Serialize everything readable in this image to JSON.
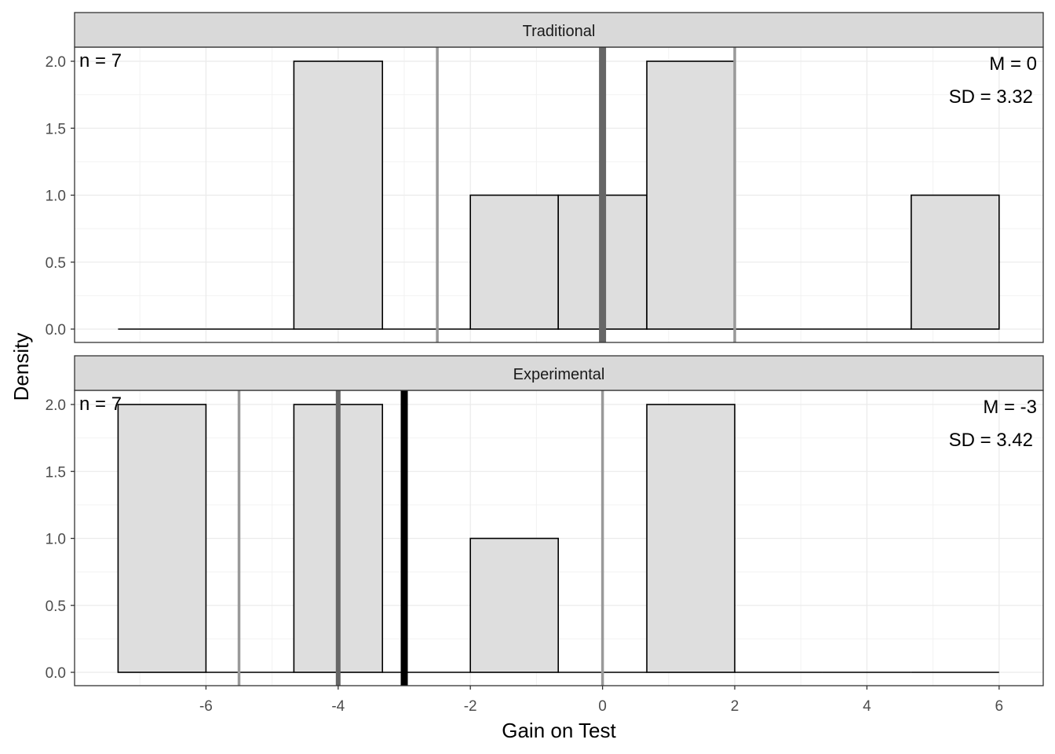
{
  "chart_data": {
    "type": "histogram",
    "xlabel": "Gain on Test",
    "ylabel": "Density",
    "xlim": [
      -7.33,
      6.67
    ],
    "ylim": [
      0,
      2
    ],
    "x_ticks": [
      -6,
      -4,
      -2,
      0,
      2,
      4,
      6
    ],
    "y_ticks": [
      0,
      0.5,
      1,
      1.5,
      2
    ],
    "y_tick_labels": [
      "0.0",
      "0.5",
      "1.0",
      "1.5",
      "2.0"
    ],
    "grid": true,
    "bin_edges": [
      -7.33,
      -6,
      -4.67,
      -3.33,
      -2,
      -0.67,
      0.67,
      2,
      3.33,
      4.67,
      6
    ],
    "bar_fill": "#dedede",
    "bar_outline": "#000000",
    "panels": [
      {
        "strip": "Traditional",
        "n_label": "n = 7",
        "mean_label": "M = 0",
        "sd_label": "SD = 3.32",
        "bin_values": [
          0,
          0,
          2,
          0,
          1,
          1,
          2,
          0,
          0,
          1
        ],
        "vlines": [
          {
            "x": -2.5,
            "color": "#999999",
            "width": 3.5
          },
          {
            "x": 0,
            "color": "#666666",
            "width": 9
          },
          {
            "x": 2,
            "color": "#999999",
            "width": 3.5
          }
        ]
      },
      {
        "strip": "Experimental",
        "n_label": "n = 7",
        "mean_label": "M = -3",
        "sd_label": "SD = 3.42",
        "bin_values": [
          2,
          0,
          2,
          0,
          1,
          0,
          2,
          0,
          0,
          0
        ],
        "vlines": [
          {
            "x": -5.5,
            "color": "#999999",
            "width": 3.5
          },
          {
            "x": -4,
            "color": "#666666",
            "width": 6
          },
          {
            "x": -3,
            "color": "#000000",
            "width": 9
          },
          {
            "x": 0,
            "color": "#999999",
            "width": 3.5
          }
        ]
      }
    ]
  }
}
